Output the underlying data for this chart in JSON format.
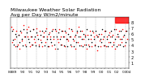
{
  "title": "Milwaukee Weather Solar Radiation\nAvg per Day W/m2/minute",
  "title_fontsize": 4.5,
  "background_color": "#ffffff",
  "plot_bg": "#ffffff",
  "xlim": [
    0,
    36
  ],
  "ylim": [
    0,
    9
  ],
  "yticks": [
    1,
    2,
    3,
    4,
    5,
    6,
    7,
    8
  ],
  "ytick_labels": [
    "1",
    "2",
    "3",
    "4",
    "5",
    "6",
    "7",
    "8"
  ],
  "xtick_labels": [
    "'88",
    "'89",
    "",
    "'90",
    "",
    "'91",
    "",
    "'92",
    "",
    "'93",
    "",
    "'94",
    "",
    "'95",
    "",
    "'96",
    "",
    "'97",
    "",
    "'98",
    "",
    "'99",
    "",
    "'00",
    "",
    "'01",
    "",
    "'02",
    "",
    "'03",
    "'04"
  ],
  "red_data_x": [
    0.2,
    0.5,
    0.8,
    1.1,
    1.4,
    1.8,
    2.1,
    2.5,
    2.8,
    3.1,
    3.5,
    3.8,
    4.1,
    4.5,
    4.8,
    5.2,
    5.5,
    5.8,
    6.2,
    6.5,
    6.8,
    7.2,
    7.5,
    7.8,
    8.2,
    8.5,
    8.8,
    9.2,
    9.5,
    9.8,
    10.2,
    10.5,
    10.8,
    11.2,
    11.5,
    11.8,
    12.2,
    12.5,
    12.8,
    13.2,
    13.5,
    13.8,
    14.2,
    14.5,
    14.8,
    15.2,
    15.5,
    15.8,
    16.2,
    16.5,
    16.8,
    17.2,
    17.5,
    17.8,
    18.2,
    18.5,
    18.8,
    19.2,
    19.5,
    19.8,
    20.2,
    20.5,
    20.8,
    21.2,
    21.5,
    21.8,
    22.2,
    22.5,
    22.8,
    23.2,
    23.5,
    23.8,
    24.2,
    24.5,
    24.8,
    25.2,
    25.5,
    25.8,
    26.2,
    26.5,
    26.8,
    27.2,
    27.5,
    27.8,
    28.2,
    28.5,
    28.8,
    29.2,
    29.5,
    29.8,
    30.2,
    30.5,
    30.8,
    31.2,
    31.5,
    31.8,
    32.2,
    32.5,
    32.8,
    33.2,
    33.5,
    33.8,
    34.2,
    34.5,
    34.8,
    35.2,
    35.5
  ],
  "red_data_y": [
    7.2,
    4.5,
    6.8,
    5.2,
    3.8,
    6.5,
    4.2,
    5.8,
    3.5,
    6.2,
    4.8,
    7.5,
    5.5,
    4.2,
    6.8,
    5.5,
    7.2,
    3.8,
    5.5,
    4.2,
    6.8,
    5.2,
    4.5,
    7.0,
    5.8,
    4.2,
    6.5,
    5.0,
    3.8,
    5.5,
    6.2,
    4.5,
    7.0,
    5.5,
    3.8,
    6.2,
    5.5,
    4.0,
    6.8,
    5.2,
    3.5,
    6.5,
    5.2,
    4.5,
    6.8,
    5.5,
    4.2,
    6.5,
    5.5,
    3.8,
    6.2,
    5.2,
    4.8,
    7.0,
    5.5,
    3.8,
    6.5,
    4.8,
    5.5,
    3.5,
    6.2,
    4.5,
    7.2,
    5.5,
    4.0,
    6.5,
    5.2,
    4.2,
    5.8,
    3.5,
    5.8,
    4.2,
    6.5,
    5.2,
    3.8,
    6.2,
    5.5,
    4.2,
    5.8,
    3.2,
    5.5,
    4.8,
    3.8,
    6.0,
    5.2,
    4.0,
    6.5,
    3.8,
    5.5,
    4.5,
    6.2,
    5.5,
    3.8,
    5.8,
    4.5,
    3.5,
    6.8,
    5.5,
    4.2,
    6.5,
    5.2,
    4.5,
    6.8,
    5.5,
    4.0,
    6.5,
    5.2
  ],
  "black_data_x": [
    0.35,
    0.65,
    1.0,
    1.35,
    1.65,
    2.0,
    2.35,
    2.65,
    3.0,
    3.35,
    3.65,
    4.0,
    4.35,
    4.65,
    5.0,
    5.35,
    5.65,
    6.0,
    6.35,
    6.65,
    7.0,
    7.35,
    7.65,
    8.0,
    8.35,
    8.65,
    9.0,
    9.35,
    9.65,
    10.0,
    10.35,
    10.65,
    11.0,
    11.35,
    11.65,
    12.0,
    12.35,
    12.65,
    13.0,
    13.35,
    13.65,
    14.0,
    14.35,
    14.65,
    15.0,
    15.35,
    15.65,
    16.0,
    16.35,
    16.65,
    17.0,
    17.35,
    17.65,
    18.0,
    18.35,
    18.65,
    19.0,
    19.35,
    19.65,
    20.0,
    20.35,
    20.65,
    21.0,
    21.35,
    21.65,
    22.0,
    22.35,
    22.65,
    23.0,
    23.35,
    23.65,
    24.0,
    24.35,
    24.65,
    25.0,
    25.35,
    25.65,
    26.0,
    26.35,
    26.65,
    27.0,
    27.35,
    27.65,
    28.0,
    28.35,
    28.65,
    29.0,
    29.35,
    29.65,
    30.0,
    30.35,
    30.65,
    31.0,
    31.35,
    31.65,
    32.0,
    32.35,
    32.65,
    33.0,
    33.35,
    33.65,
    34.0,
    34.35,
    34.65,
    35.0,
    35.35
  ],
  "black_data_y": [
    6.5,
    5.0,
    4.2,
    6.0,
    5.5,
    3.8,
    5.8,
    4.5,
    6.5,
    5.2,
    4.0,
    6.8,
    5.5,
    3.8,
    6.2,
    5.2,
    4.5,
    6.5,
    5.5,
    4.2,
    6.8,
    5.5,
    4.0,
    6.2,
    5.2,
    3.8,
    5.8,
    4.5,
    6.5,
    5.5,
    4.0,
    6.5,
    5.2,
    3.8,
    6.0,
    5.2,
    4.5,
    6.5,
    5.5,
    4.2,
    6.8,
    5.5,
    3.5,
    6.2,
    5.2,
    4.2,
    6.5,
    5.5,
    4.0,
    6.5,
    5.2,
    3.8,
    6.0,
    5.5,
    4.2,
    6.8,
    5.2,
    3.8,
    5.8,
    4.5,
    6.5,
    5.5,
    4.0,
    6.5,
    5.2,
    3.8,
    6.0,
    5.5,
    4.2,
    6.8,
    5.2,
    3.8,
    5.8,
    4.5,
    6.5,
    5.2,
    4.0,
    6.5,
    5.5,
    3.8,
    6.0,
    5.2,
    4.5,
    6.8,
    5.5,
    4.0,
    6.5,
    5.2,
    3.8,
    5.8,
    4.5,
    6.5,
    5.5,
    4.2,
    6.8,
    5.2,
    3.8,
    6.0,
    5.5,
    4.2,
    6.5,
    5.2,
    3.8,
    5.8,
    4.5,
    6.5
  ],
  "vline_positions": [
    2,
    5,
    8,
    11,
    14,
    17,
    20,
    23,
    26,
    29,
    32,
    35
  ],
  "highlight_x1": 32,
  "highlight_x2": 36,
  "highlight_color": "#ff0000",
  "marker_size": 1.2,
  "ytick_fontsize": 3.5,
  "xtick_fontsize": 3.0
}
